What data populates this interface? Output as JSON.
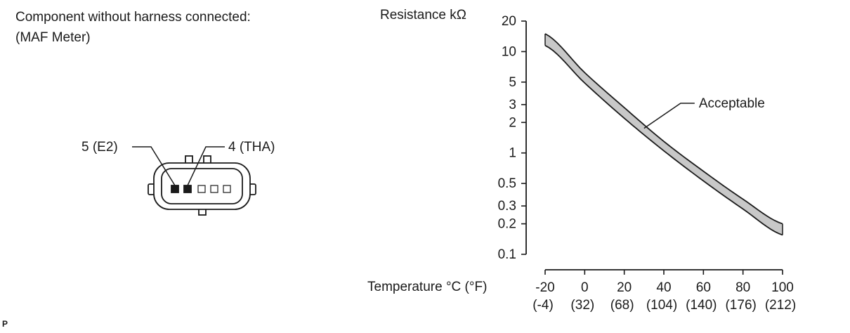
{
  "connector": {
    "title_line1": "Component without harness connected:",
    "title_line2": "(MAF Meter)",
    "pin_e2_label": "5 (E2)",
    "pin_tha_label": "4 (THA)"
  },
  "corner_mark": "P",
  "chart_data": {
    "type": "area",
    "ylabel": "Resistance kΩ",
    "xlabel": "Temperature °C (°F)",
    "yscale": "log",
    "ylim": [
      0.1,
      20
    ],
    "xlim": [
      -20,
      100
    ],
    "y_ticks": [
      {
        "value": 20,
        "label": "20"
      },
      {
        "value": 10,
        "label": "10"
      },
      {
        "value": 5,
        "label": "5"
      },
      {
        "value": 3,
        "label": "3"
      },
      {
        "value": 2,
        "label": "2"
      },
      {
        "value": 1,
        "label": "1"
      },
      {
        "value": 0.5,
        "label": "0.5"
      },
      {
        "value": 0.3,
        "label": "0.3"
      },
      {
        "value": 0.2,
        "label": "0.2"
      },
      {
        "value": 0.1,
        "label": "0.1"
      }
    ],
    "x_ticks": [
      {
        "value": -20,
        "label": "-20",
        "sublabel": "(-4)"
      },
      {
        "value": 0,
        "label": "0",
        "sublabel": "(32)"
      },
      {
        "value": 20,
        "label": "20",
        "sublabel": "(68)"
      },
      {
        "value": 40,
        "label": "40",
        "sublabel": "(104)"
      },
      {
        "value": 60,
        "label": "60",
        "sublabel": "(140)"
      },
      {
        "value": 80,
        "label": "80",
        "sublabel": "(176)"
      },
      {
        "value": 100,
        "label": "100",
        "sublabel": "(212)"
      }
    ],
    "series": [
      {
        "name": "Acceptable",
        "x": [
          -20,
          0,
          20,
          40,
          60,
          80,
          100
        ],
        "upper": [
          15,
          6.2,
          2.8,
          1.3,
          0.66,
          0.35,
          0.2
        ],
        "lower": [
          11.5,
          4.9,
          2.2,
          1.05,
          0.53,
          0.28,
          0.155
        ]
      }
    ],
    "annotation": {
      "text": "Acceptable",
      "x": 30,
      "y": 1.75
    },
    "band_color": "#c8c8c8",
    "line_color": "#1a1a1a"
  }
}
